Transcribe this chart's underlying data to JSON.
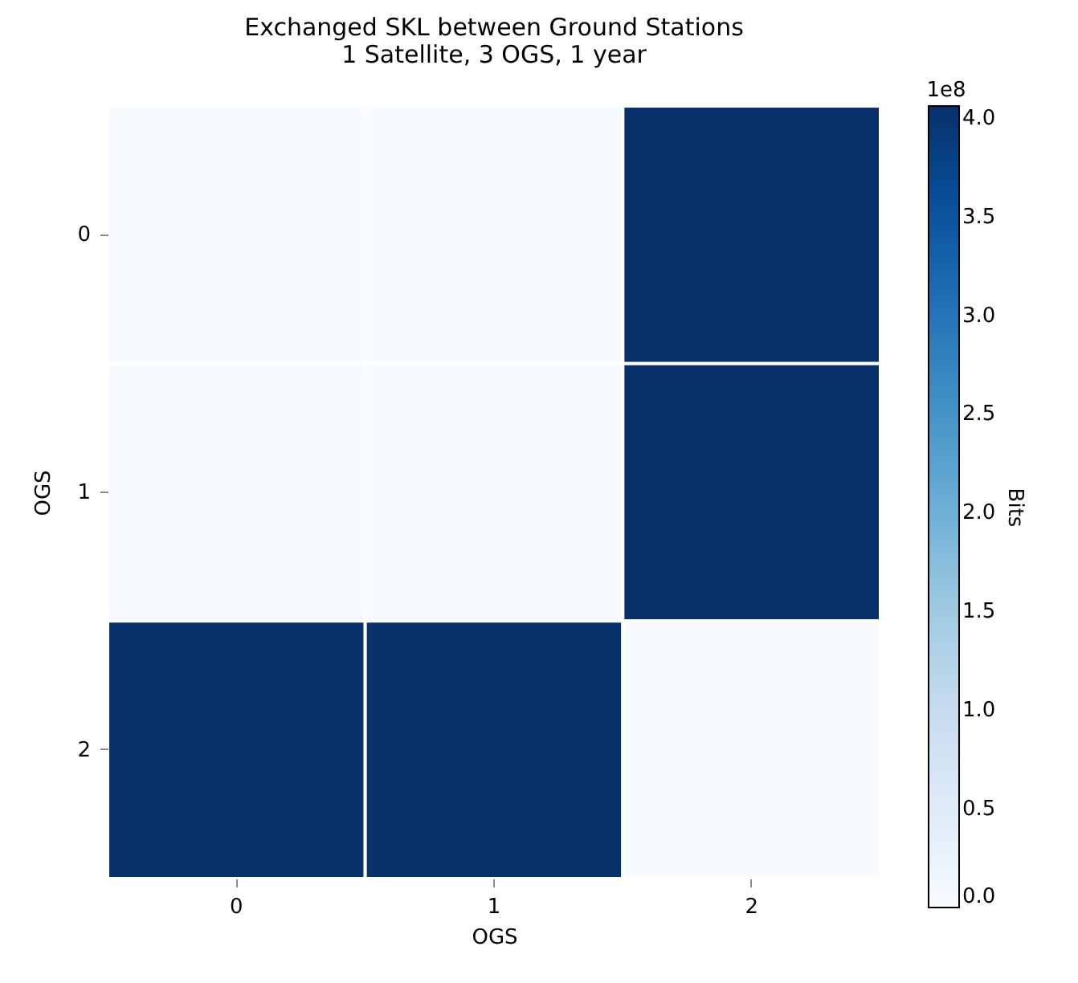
{
  "chart_data": {
    "type": "heatmap",
    "title": "Exchanged SKL between Ground Stations",
    "subtitle": "1 Satellite, 3 OGS, 1 year",
    "xlabel": "OGS",
    "ylabel": "OGS",
    "clabel": "Bits",
    "annotations": [
      "1e8"
    ],
    "categories": [
      "0",
      "1",
      "2"
    ],
    "y_categories": [
      "0",
      "1",
      "2"
    ],
    "cells": [
      [
        0,
        0,
        4.06
      ],
      [
        0,
        0,
        4.06
      ],
      [
        4.06,
        4.06,
        0
      ]
    ],
    "clim": [
      0,
      4.06
    ],
    "cticks": [
      {
        "value": 0,
        "label": "0.0"
      },
      0.5,
      {
        "value": 1,
        "label": "1.0"
      },
      1.5,
      {
        "value": 2,
        "label": "2.0"
      },
      2.5,
      {
        "value": 3,
        "label": "3.0"
      },
      3.5,
      {
        "value": 4,
        "label": "4.0"
      }
    ]
  }
}
